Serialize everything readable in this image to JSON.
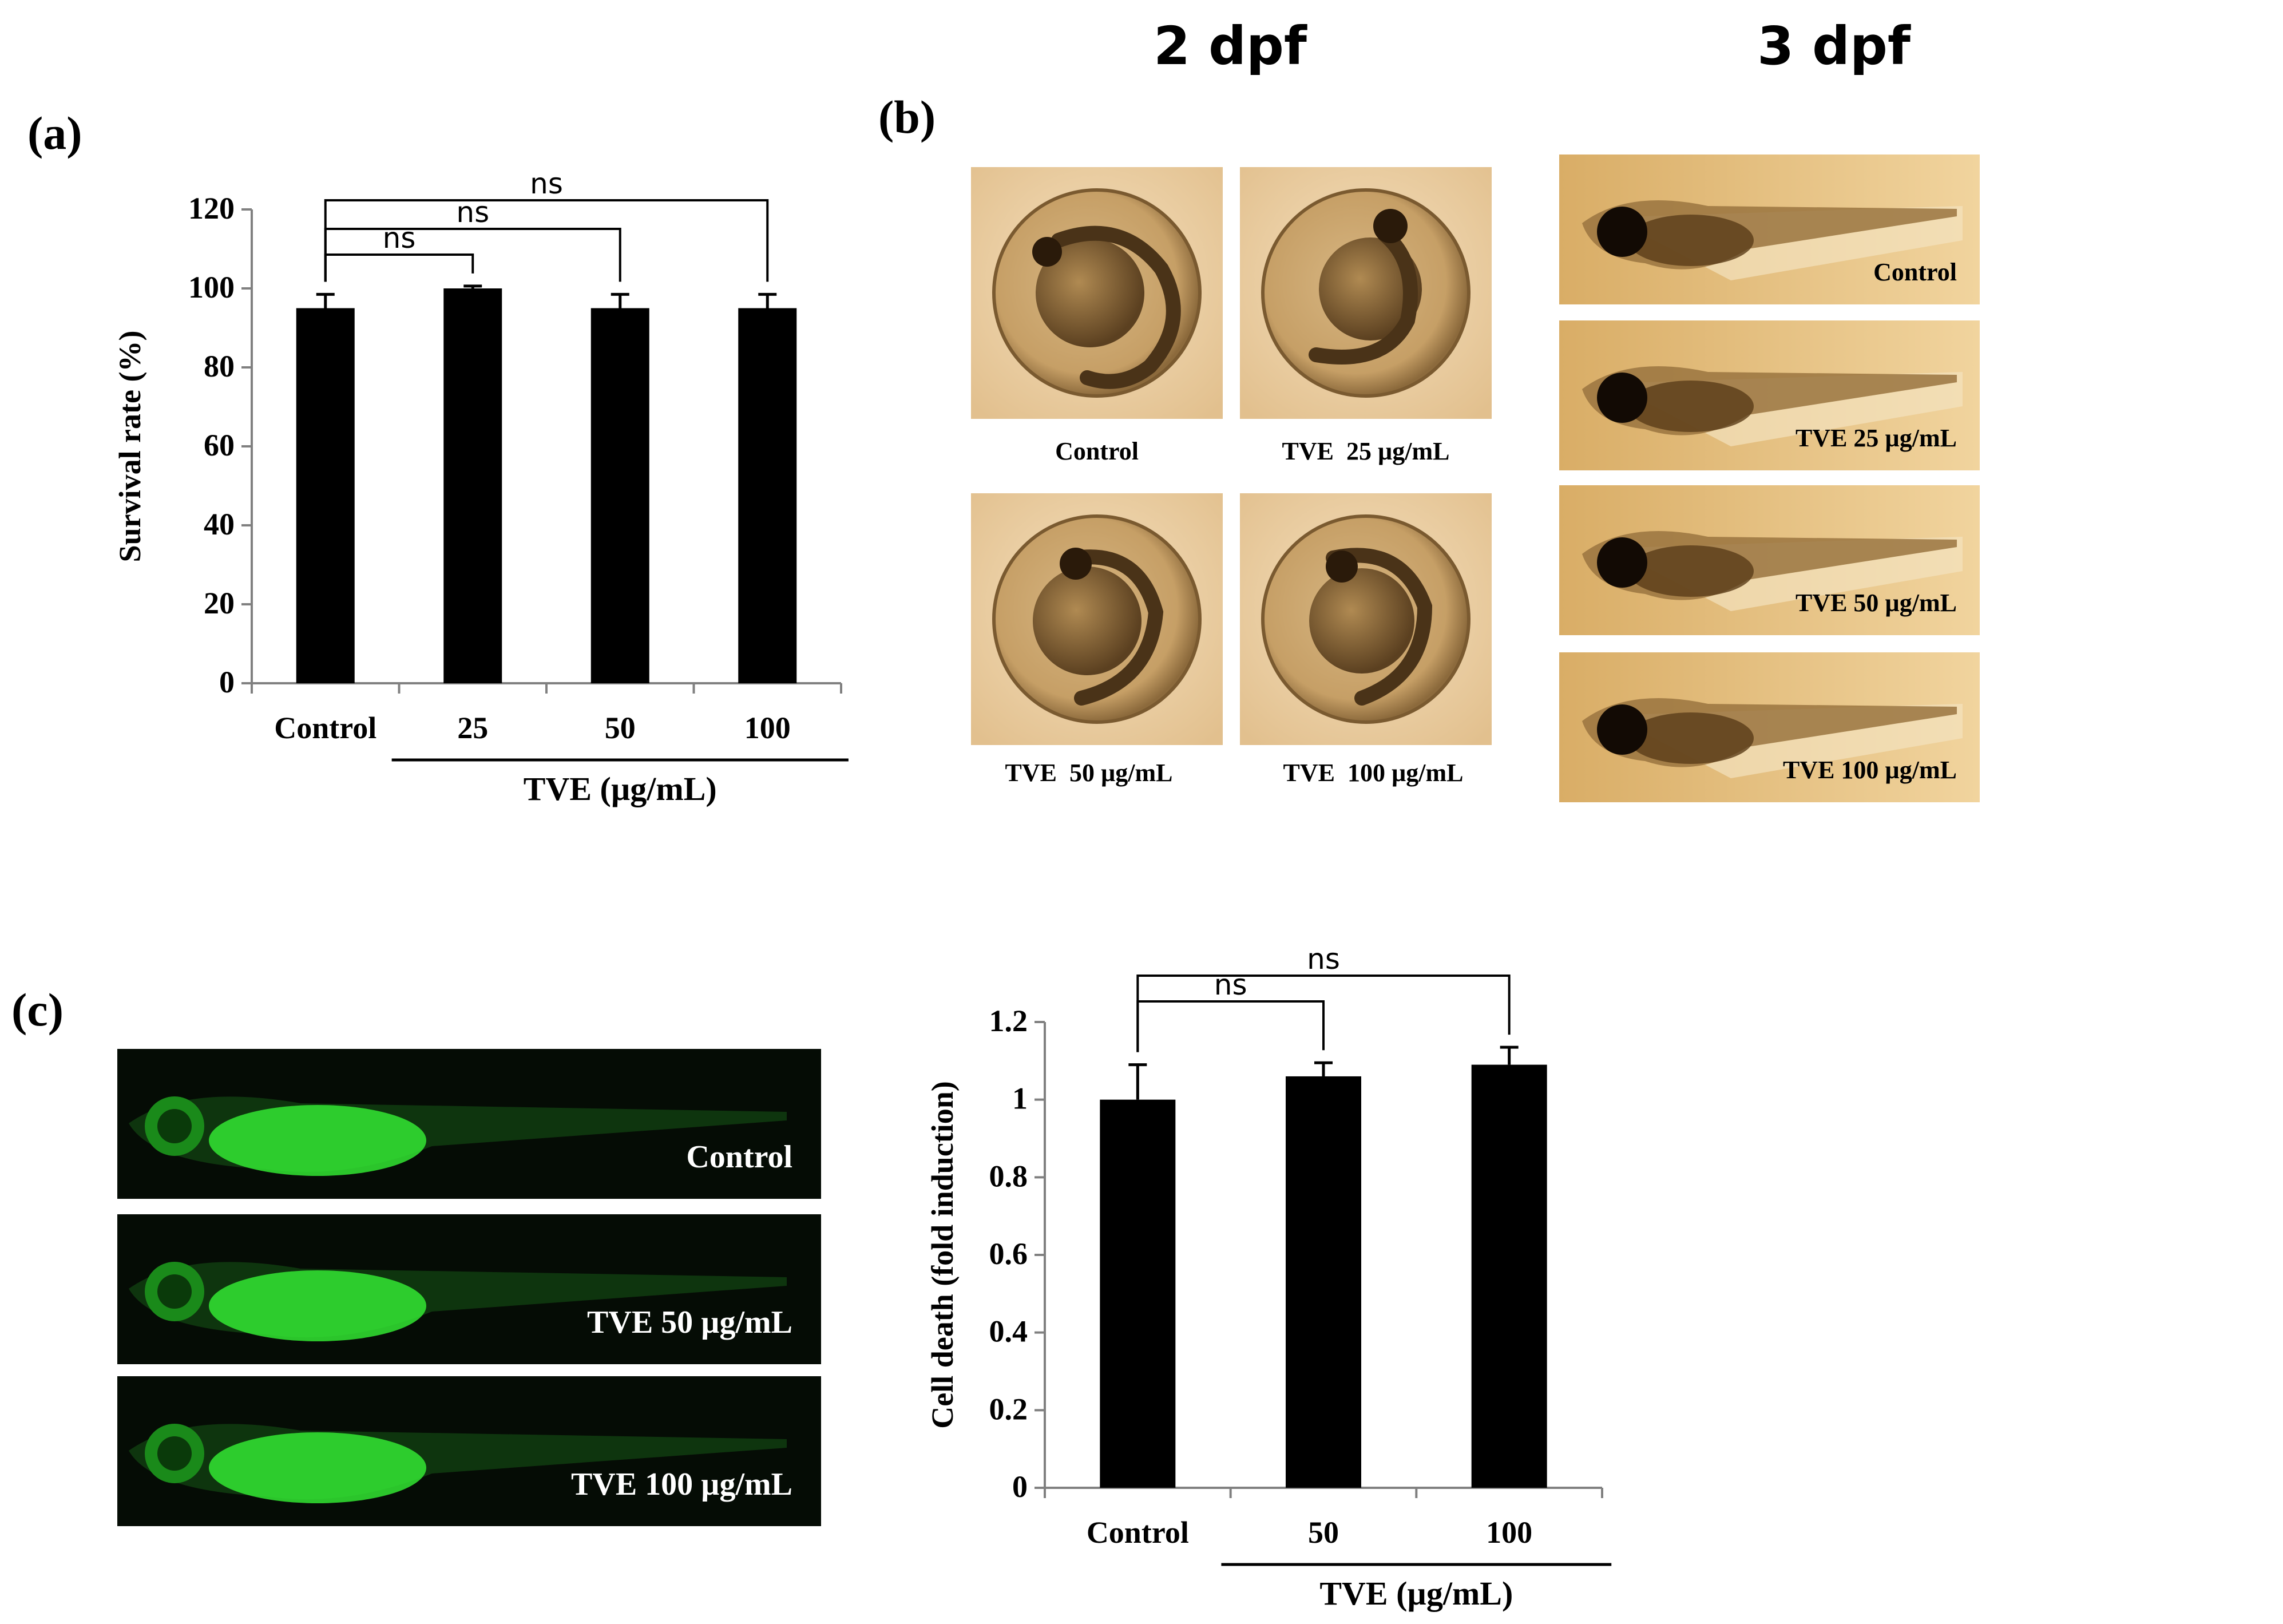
{
  "panels": {
    "a": {
      "label": "(a)"
    },
    "b": {
      "label": "(b)"
    },
    "c": {
      "label": "(c)"
    }
  },
  "stage_headers": [
    "2 dpf",
    "3 dpf"
  ],
  "chart_data": [
    {
      "id": "a",
      "type": "bar",
      "categories": [
        "Control",
        "25",
        "50",
        "100"
      ],
      "values": [
        95,
        100,
        95,
        95
      ],
      "errors": [
        3.5,
        0.6,
        3.5,
        3.5
      ],
      "ylabel": "Survival rate (%)",
      "xlabel": "TVE (µg/mL)",
      "ylim": [
        0,
        120
      ],
      "yticks": [
        "0",
        "20",
        "40",
        "60",
        "80",
        "100",
        "120"
      ],
      "grid": false,
      "bar_color": "#000000",
      "significance": [
        {
          "from": "Control",
          "to": "25",
          "label": "ns"
        },
        {
          "from": "Control",
          "to": "50",
          "label": "ns"
        },
        {
          "from": "Control",
          "to": "100",
          "label": "ns"
        }
      ]
    },
    {
      "id": "c",
      "type": "bar",
      "categories": [
        "Control",
        "50",
        "100"
      ],
      "values": [
        1.0,
        1.06,
        1.09
      ],
      "errors": [
        0.09,
        0.035,
        0.045
      ],
      "ylabel": "Cell death (fold induction)",
      "xlabel": "TVE (µg/mL)",
      "ylim": [
        0,
        1.2
      ],
      "yticks": [
        "0",
        "0.2",
        "0.4",
        "0.6",
        "0.8",
        "1",
        "1.2"
      ],
      "grid": false,
      "bar_color": "#000000",
      "significance": [
        {
          "from": "Control",
          "to": "50",
          "label": "ns"
        },
        {
          "from": "Control",
          "to": "100",
          "label": "ns"
        }
      ]
    }
  ],
  "embryo_images": [
    {
      "caption": "Control"
    },
    {
      "caption": "TVE  25 µg/mL"
    },
    {
      "caption": "TVE  50 µg/mL"
    },
    {
      "caption": "TVE  100 µg/mL"
    }
  ],
  "larva_images": [
    {
      "caption": "Control"
    },
    {
      "caption": "TVE  25 µg/mL"
    },
    {
      "caption": "TVE  50 µg/mL"
    },
    {
      "caption": "TVE  100 µg/mL"
    }
  ],
  "fluorescent_images": [
    {
      "caption": "Control"
    },
    {
      "caption": "TVE 50 µg/mL"
    },
    {
      "caption": "TVE 100 µg/mL"
    }
  ],
  "colors": {
    "brightfield_bg": "#e7c690",
    "embryo_bg": "#f0d8b0",
    "fluorescent_bg": "#050c05",
    "fluorescent_green": "#33e633"
  }
}
